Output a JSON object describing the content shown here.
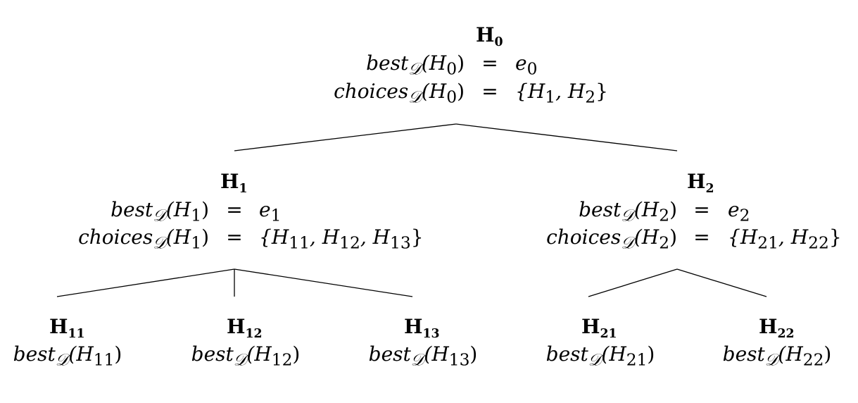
{
  "root": {
    "title": "H",
    "title_sub": "0",
    "best_fn": "best",
    "best_fn_sub": "𝒟",
    "best_arg": "(H",
    "best_arg_sub": "0",
    "best_arg_close": ")",
    "eq": "=",
    "best_val": "e",
    "best_val_sub": "0",
    "choices_fn": "choices",
    "choices_fn_sub": "𝒟",
    "choices_arg": "(H",
    "choices_arg_sub": "0",
    "choices_arg_close": ")",
    "choices_val_open": "{H",
    "choices_val_1_sub": "1",
    "choices_val_sep": ", H",
    "choices_val_2_sub": "2",
    "choices_val_close": "}"
  },
  "h1": {
    "title": "H",
    "title_sub": "1",
    "best_fn": "best",
    "best_fn_sub": "𝒟",
    "best_arg": "(H",
    "best_arg_sub": "1",
    "best_arg_close": ")",
    "eq": "=",
    "best_val": "e",
    "best_val_sub": "1",
    "choices_fn": "choices",
    "choices_fn_sub": "𝒟",
    "choices_arg": "(H",
    "choices_arg_sub": "1",
    "choices_arg_close": ")",
    "choices_val_open": "{H",
    "choices_val_1_sub": "11",
    "choices_val_sep1": ", H",
    "choices_val_2_sub": "12",
    "choices_val_sep2": ", H",
    "choices_val_3_sub": "13",
    "choices_val_close": "}"
  },
  "h2": {
    "title": "H",
    "title_sub": "2",
    "best_fn": "best",
    "best_fn_sub": "𝒟",
    "best_arg": "(H",
    "best_arg_sub": "2",
    "best_arg_close": ")",
    "eq": "=",
    "best_val": "e",
    "best_val_sub": "2",
    "choices_fn": "choices",
    "choices_fn_sub": "𝒟",
    "choices_arg": "(H",
    "choices_arg_sub": "2",
    "choices_arg_close": ")",
    "choices_val_open": "{H",
    "choices_val_1_sub": "21",
    "choices_val_sep": ", H",
    "choices_val_2_sub": "22",
    "choices_val_close": "}"
  },
  "leaves": [
    {
      "title": "H",
      "title_sub": "11",
      "fn": "best",
      "fn_sub": "𝒟",
      "arg": "(H",
      "arg_sub": "11",
      "close": ")"
    },
    {
      "title": "H",
      "title_sub": "12",
      "fn": "best",
      "fn_sub": "𝒟",
      "arg": "(H",
      "arg_sub": "12",
      "close": ")"
    },
    {
      "title": "H",
      "title_sub": "13",
      "fn": "best",
      "fn_sub": "𝒟",
      "arg": "(H",
      "arg_sub": "13",
      "close": ")"
    },
    {
      "title": "H",
      "title_sub": "21",
      "fn": "best",
      "fn_sub": "𝒟",
      "arg": "(H",
      "arg_sub": "21",
      "close": ")"
    },
    {
      "title": "H",
      "title_sub": "22",
      "fn": "best",
      "fn_sub": "𝒟",
      "arg": "(H",
      "arg_sub": "22",
      "close": ")"
    }
  ]
}
